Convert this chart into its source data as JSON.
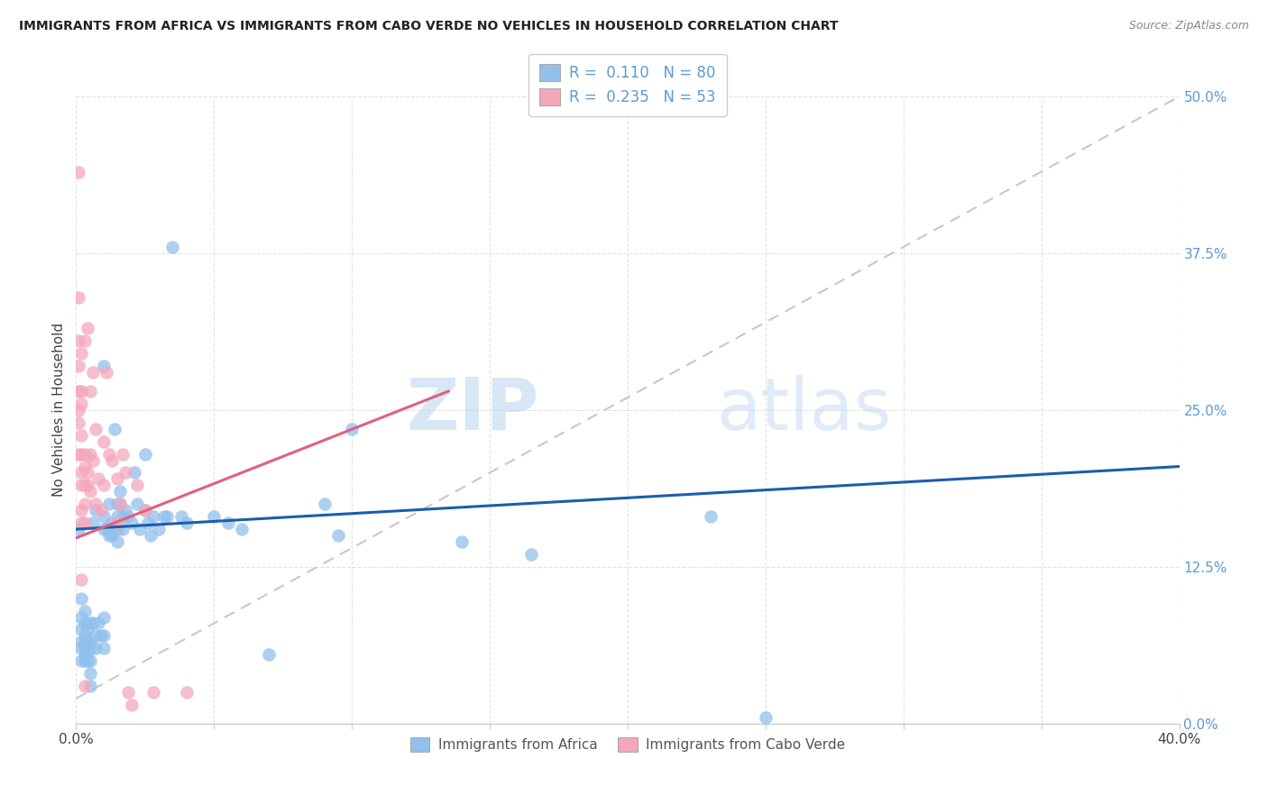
{
  "title": "IMMIGRANTS FROM AFRICA VS IMMIGRANTS FROM CABO VERDE NO VEHICLES IN HOUSEHOLD CORRELATION CHART",
  "source": "Source: ZipAtlas.com",
  "ylabel": "No Vehicles in Household",
  "xlim": [
    0.0,
    0.4
  ],
  "ylim": [
    0.0,
    0.5
  ],
  "x_ticks": [
    0.0,
    0.05,
    0.1,
    0.15,
    0.2,
    0.25,
    0.3,
    0.35,
    0.4
  ],
  "y_ticks": [
    0.0,
    0.125,
    0.25,
    0.375,
    0.5
  ],
  "ytick_labels_right": [
    "0.0%",
    "12.5%",
    "25.0%",
    "37.5%",
    "50.0%"
  ],
  "R_blue": 0.11,
  "N_blue": 80,
  "R_pink": 0.235,
  "N_pink": 53,
  "legend_label_blue": "Immigrants from Africa",
  "legend_label_pink": "Immigrants from Cabo Verde",
  "color_blue": "#92C0EC",
  "color_pink": "#F4A7BB",
  "color_blue_line": "#1B5EAB",
  "color_pink_line": "#E06080",
  "color_gray_dashed": "#C8C8C8",
  "watermark_zip": "ZIP",
  "watermark_atlas": "atlas",
  "blue_line_x": [
    0.0,
    0.4
  ],
  "blue_line_y": [
    0.155,
    0.205
  ],
  "pink_line_x": [
    0.0,
    0.135
  ],
  "pink_line_y": [
    0.148,
    0.265
  ],
  "dash_line_x": [
    0.0,
    0.4
  ],
  "dash_line_y": [
    0.02,
    0.5
  ],
  "scatter_blue": [
    [
      0.001,
      0.155
    ],
    [
      0.002,
      0.1
    ],
    [
      0.002,
      0.085
    ],
    [
      0.002,
      0.075
    ],
    [
      0.002,
      0.065
    ],
    [
      0.002,
      0.06
    ],
    [
      0.002,
      0.05
    ],
    [
      0.003,
      0.09
    ],
    [
      0.003,
      0.08
    ],
    [
      0.003,
      0.07
    ],
    [
      0.003,
      0.065
    ],
    [
      0.003,
      0.06
    ],
    [
      0.003,
      0.055
    ],
    [
      0.003,
      0.05
    ],
    [
      0.004,
      0.075
    ],
    [
      0.004,
      0.065
    ],
    [
      0.004,
      0.055
    ],
    [
      0.004,
      0.05
    ],
    [
      0.005,
      0.08
    ],
    [
      0.005,
      0.065
    ],
    [
      0.005,
      0.06
    ],
    [
      0.005,
      0.05
    ],
    [
      0.005,
      0.04
    ],
    [
      0.005,
      0.03
    ],
    [
      0.006,
      0.16
    ],
    [
      0.006,
      0.08
    ],
    [
      0.007,
      0.17
    ],
    [
      0.007,
      0.07
    ],
    [
      0.007,
      0.06
    ],
    [
      0.008,
      0.08
    ],
    [
      0.009,
      0.07
    ],
    [
      0.01,
      0.285
    ],
    [
      0.01,
      0.165
    ],
    [
      0.01,
      0.155
    ],
    [
      0.01,
      0.085
    ],
    [
      0.01,
      0.07
    ],
    [
      0.01,
      0.06
    ],
    [
      0.011,
      0.155
    ],
    [
      0.012,
      0.175
    ],
    [
      0.012,
      0.155
    ],
    [
      0.012,
      0.15
    ],
    [
      0.013,
      0.16
    ],
    [
      0.013,
      0.15
    ],
    [
      0.014,
      0.235
    ],
    [
      0.015,
      0.175
    ],
    [
      0.015,
      0.165
    ],
    [
      0.015,
      0.155
    ],
    [
      0.015,
      0.145
    ],
    [
      0.016,
      0.185
    ],
    [
      0.016,
      0.175
    ],
    [
      0.017,
      0.165
    ],
    [
      0.017,
      0.155
    ],
    [
      0.018,
      0.17
    ],
    [
      0.019,
      0.165
    ],
    [
      0.02,
      0.16
    ],
    [
      0.021,
      0.2
    ],
    [
      0.022,
      0.175
    ],
    [
      0.023,
      0.155
    ],
    [
      0.025,
      0.215
    ],
    [
      0.025,
      0.17
    ],
    [
      0.026,
      0.16
    ],
    [
      0.027,
      0.15
    ],
    [
      0.028,
      0.165
    ],
    [
      0.03,
      0.155
    ],
    [
      0.032,
      0.165
    ],
    [
      0.033,
      0.165
    ],
    [
      0.035,
      0.38
    ],
    [
      0.038,
      0.165
    ],
    [
      0.04,
      0.16
    ],
    [
      0.05,
      0.165
    ],
    [
      0.055,
      0.16
    ],
    [
      0.06,
      0.155
    ],
    [
      0.07,
      0.055
    ],
    [
      0.09,
      0.175
    ],
    [
      0.095,
      0.15
    ],
    [
      0.1,
      0.235
    ],
    [
      0.14,
      0.145
    ],
    [
      0.165,
      0.135
    ],
    [
      0.23,
      0.165
    ],
    [
      0.25,
      0.005
    ]
  ],
  "scatter_pink": [
    [
      0.001,
      0.44
    ],
    [
      0.001,
      0.34
    ],
    [
      0.001,
      0.305
    ],
    [
      0.001,
      0.285
    ],
    [
      0.001,
      0.265
    ],
    [
      0.001,
      0.25
    ],
    [
      0.001,
      0.24
    ],
    [
      0.001,
      0.215
    ],
    [
      0.002,
      0.295
    ],
    [
      0.002,
      0.265
    ],
    [
      0.002,
      0.255
    ],
    [
      0.002,
      0.23
    ],
    [
      0.002,
      0.215
    ],
    [
      0.002,
      0.2
    ],
    [
      0.002,
      0.19
    ],
    [
      0.002,
      0.17
    ],
    [
      0.002,
      0.16
    ],
    [
      0.002,
      0.115
    ],
    [
      0.003,
      0.305
    ],
    [
      0.003,
      0.215
    ],
    [
      0.003,
      0.205
    ],
    [
      0.003,
      0.19
    ],
    [
      0.003,
      0.175
    ],
    [
      0.003,
      0.16
    ],
    [
      0.003,
      0.03
    ],
    [
      0.004,
      0.315
    ],
    [
      0.004,
      0.2
    ],
    [
      0.004,
      0.19
    ],
    [
      0.005,
      0.265
    ],
    [
      0.005,
      0.215
    ],
    [
      0.005,
      0.185
    ],
    [
      0.006,
      0.28
    ],
    [
      0.006,
      0.21
    ],
    [
      0.007,
      0.235
    ],
    [
      0.007,
      0.175
    ],
    [
      0.008,
      0.195
    ],
    [
      0.009,
      0.17
    ],
    [
      0.01,
      0.225
    ],
    [
      0.01,
      0.19
    ],
    [
      0.011,
      0.28
    ],
    [
      0.012,
      0.215
    ],
    [
      0.013,
      0.21
    ],
    [
      0.015,
      0.195
    ],
    [
      0.015,
      0.16
    ],
    [
      0.016,
      0.175
    ],
    [
      0.017,
      0.215
    ],
    [
      0.018,
      0.2
    ],
    [
      0.019,
      0.025
    ],
    [
      0.02,
      0.015
    ],
    [
      0.022,
      0.19
    ],
    [
      0.025,
      0.17
    ],
    [
      0.028,
      0.025
    ],
    [
      0.04,
      0.025
    ]
  ]
}
